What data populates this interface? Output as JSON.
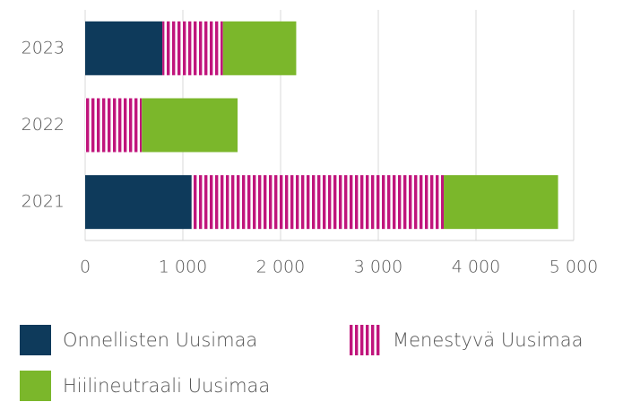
{
  "chart_data": {
    "type": "bar",
    "orientation": "horizontal",
    "stacked": true,
    "categories": [
      "2023",
      "2022",
      "2021"
    ],
    "series": [
      {
        "name": "Onnellisten Uusimaa",
        "color": "#0e3a5b",
        "pattern": "solid",
        "values": [
          790,
          0,
          1090
        ]
      },
      {
        "name": "Menestyvä Uusimaa",
        "color": "#c0157c",
        "pattern": "vertical-stripes",
        "values": [
          620,
          580,
          2580
        ]
      },
      {
        "name": "Hiilineutraali Uusimaa",
        "color": "#7bb72b",
        "pattern": "solid",
        "values": [
          750,
          980,
          1170
        ]
      }
    ],
    "xlim": [
      0,
      5000
    ],
    "xticks": [
      0,
      {
        "value": 1000,
        "label": "1 000"
      },
      {
        "value": 2000,
        "label": "2 000"
      },
      {
        "value": 3000,
        "label": "3 000"
      },
      {
        "value": 4000,
        "label": "4 000"
      },
      {
        "value": 5000,
        "label": "5 000"
      }
    ],
    "grid": true
  }
}
